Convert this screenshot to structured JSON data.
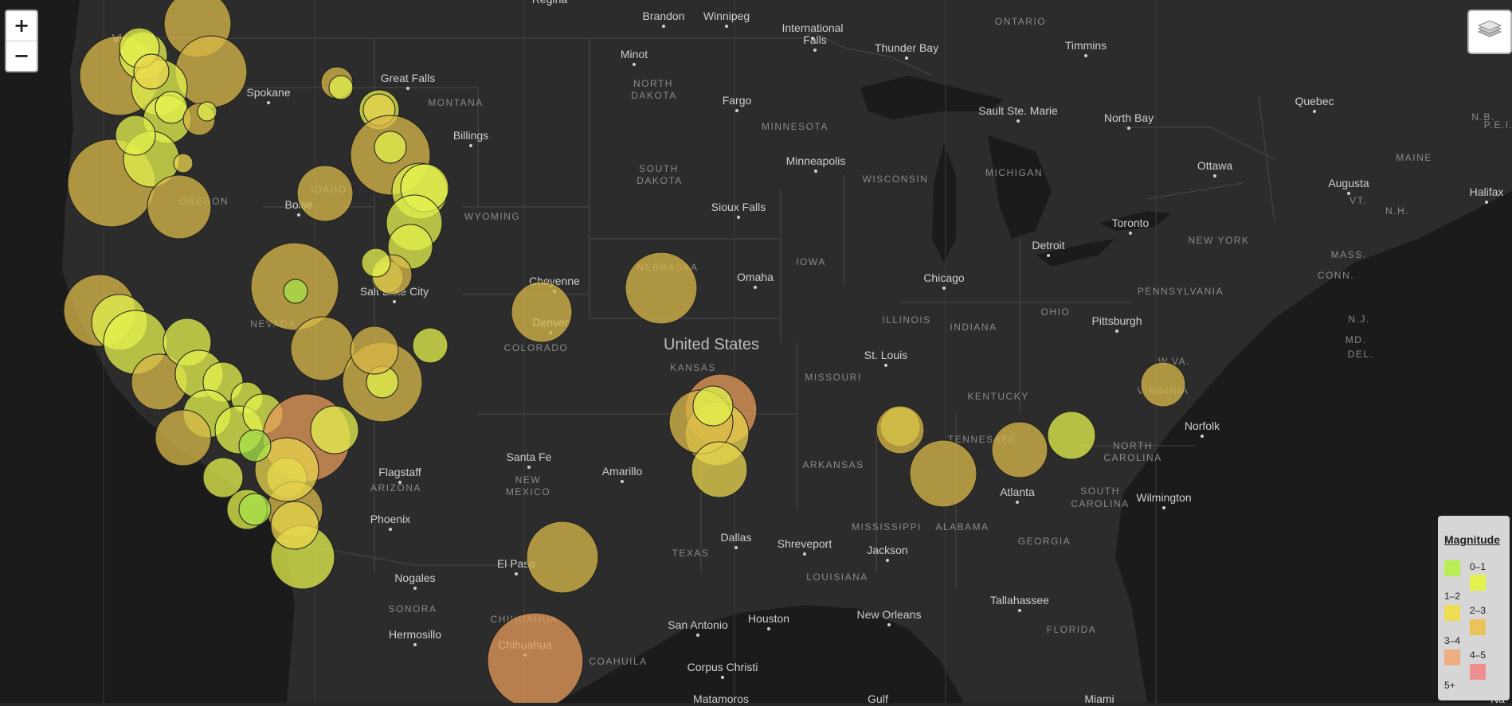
{
  "map": {
    "city_labels": [
      "Brandon",
      "Winnipeg",
      "International",
      "Falls",
      "Thunder Bay",
      "Timmins",
      "Minot",
      "Great Falls",
      "Spokane",
      "Billings",
      "Fargo",
      "Sault Ste. Marie",
      "North Bay",
      "Quebec",
      "Ottawa",
      "Augusta",
      "Halifax",
      "Minneapolis",
      "Sioux Falls",
      "Toronto",
      "Detroit",
      "Boise",
      "Omaha",
      "Chicago",
      "Cheyenne",
      "Denver",
      "Salt Lake City",
      "Pittsburgh",
      "St. Louis",
      "Norfolk",
      "Santa Fe",
      "Amarillo",
      "Flagstaff",
      "Atlanta",
      "Wilmington",
      "Phoenix",
      "Dallas",
      "Shreveport",
      "Jackson",
      "El Paso",
      "Nogales",
      "Houston",
      "New Orleans",
      "Tallahassee",
      "San Antonio",
      "Hermosillo",
      "Chihuahua",
      "Corpus Christi",
      "Matamoros",
      "Miami"
    ],
    "region_labels": [
      "ONTARIO",
      "NORTH",
      "DAKOTA",
      "MONTANA",
      "MINNESOTA",
      "SOUTH",
      "DAKOTA",
      "WISCONSIN",
      "MICHIGAN",
      "MAINE",
      "VT.",
      "N.H.",
      "N.B.",
      "P.E.I.",
      "NEW YORK",
      "MASS.",
      "CONN.",
      "OREGON",
      "IDAHO",
      "WYOMING",
      "NEBRASKA",
      "IOWA",
      "PENNSYLVANIA",
      "N.J.",
      "OHIO",
      "MD.",
      "DEL.",
      "ILLINOIS",
      "INDIANA",
      "W.VA.",
      "COLORADO",
      "KANSAS",
      "MISSOURI",
      "VIRGINIA",
      "KENTUCKY",
      "NEVADA",
      "TENNESSEE",
      "NORTH",
      "CAROLINA",
      "ARKANSAS",
      "SOUTH",
      "CAROLINA",
      "ARIZONA",
      "NEW",
      "MEXICO",
      "MISSISSIPPI",
      "ALABAMA",
      "GEORGIA",
      "TEXAS",
      "LOUISIANA",
      "FLORIDA",
      "SONORA",
      "CHIHUAHUA",
      "COAHUILA"
    ],
    "country_label": "United States",
    "partial_labels": [
      "Vi",
      "Regina",
      "Gulf",
      "Na"
    ]
  },
  "controls": {
    "zoom_in": "+",
    "zoom_out": "−",
    "layers_icon": "layers-icon"
  },
  "legend": {
    "title": "Magnitude",
    "ranges": [
      {
        "label": "0–1",
        "color": "#e3f24d"
      },
      {
        "label": "1–2",
        "color": "#efdc55"
      },
      {
        "label": "2–3",
        "color": "#ecc35a"
      },
      {
        "label": "3–4",
        "color": "#edae84"
      },
      {
        "label": "4–5",
        "color": "#ee8e91"
      },
      {
        "label": "5+",
        "color": ""
      }
    ],
    "first_swatch_color": "#b9ed55"
  },
  "colors": {
    "background": "#262626",
    "land": "#2f2f2f",
    "water": "#1a1a1a",
    "label": "#cfcfcf",
    "region_label": "#8a8a8a",
    "marker_green": "#a8e34a",
    "marker_lime": "#e3f24d",
    "marker_yellow": "#e8d44d",
    "marker_gold": "#d8b848",
    "marker_orange": "#e69a5a"
  }
}
